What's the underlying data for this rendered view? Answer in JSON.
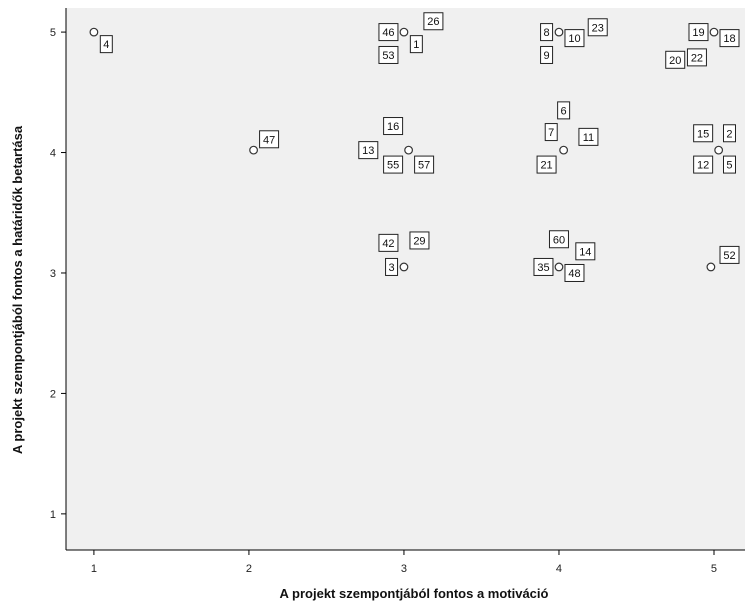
{
  "chart_data": {
    "type": "scatter",
    "title": "",
    "xlabel": "A projekt szempontjából fontos a motiváció",
    "ylabel": "A projekt szempontjából fontos a határidők betartása",
    "xlim": [
      0.82,
      5.2
    ],
    "ylim": [
      0.7,
      5.2
    ],
    "xticks": [
      1,
      2,
      3,
      4,
      5
    ],
    "yticks": [
      1,
      2,
      3,
      4,
      5
    ],
    "grid": false,
    "colors": {
      "plot_bg": "#f0f0f0",
      "marker_stroke": "#333333",
      "axis": "#000000"
    },
    "points": [
      {
        "x": 1.0,
        "y": 5.0
      },
      {
        "x": 3.0,
        "y": 5.0
      },
      {
        "x": 4.0,
        "y": 5.0
      },
      {
        "x": 5.0,
        "y": 5.0
      },
      {
        "x": 2.03,
        "y": 4.02
      },
      {
        "x": 3.03,
        "y": 4.02
      },
      {
        "x": 4.03,
        "y": 4.02
      },
      {
        "x": 5.03,
        "y": 4.02
      },
      {
        "x": 3.0,
        "y": 3.05
      },
      {
        "x": 4.0,
        "y": 3.05
      },
      {
        "x": 4.98,
        "y": 3.05
      }
    ],
    "point_labels": [
      {
        "text": "4",
        "x": 1.08,
        "y": 4.9
      },
      {
        "text": "46",
        "x": 2.9,
        "y": 5.0
      },
      {
        "text": "26",
        "x": 3.19,
        "y": 5.09
      },
      {
        "text": "1",
        "x": 3.08,
        "y": 4.9
      },
      {
        "text": "53",
        "x": 2.9,
        "y": 4.81
      },
      {
        "text": "8",
        "x": 3.92,
        "y": 5.0
      },
      {
        "text": "10",
        "x": 4.1,
        "y": 4.95
      },
      {
        "text": "23",
        "x": 4.25,
        "y": 5.04
      },
      {
        "text": "9",
        "x": 3.92,
        "y": 4.81
      },
      {
        "text": "19",
        "x": 4.9,
        "y": 5.0
      },
      {
        "text": "18",
        "x": 5.1,
        "y": 4.95
      },
      {
        "text": "20",
        "x": 4.75,
        "y": 4.77
      },
      {
        "text": "22",
        "x": 4.89,
        "y": 4.79
      },
      {
        "text": "47",
        "x": 2.13,
        "y": 4.11
      },
      {
        "text": "16",
        "x": 2.93,
        "y": 4.22
      },
      {
        "text": "13",
        "x": 2.77,
        "y": 4.02
      },
      {
        "text": "55",
        "x": 2.93,
        "y": 3.9
      },
      {
        "text": "57",
        "x": 3.13,
        "y": 3.9
      },
      {
        "text": "6",
        "x": 4.03,
        "y": 4.35
      },
      {
        "text": "7",
        "x": 3.95,
        "y": 4.17
      },
      {
        "text": "11",
        "x": 4.19,
        "y": 4.13
      },
      {
        "text": "21",
        "x": 3.92,
        "y": 3.9
      },
      {
        "text": "15",
        "x": 4.93,
        "y": 4.16
      },
      {
        "text": "2",
        "x": 5.1,
        "y": 4.16
      },
      {
        "text": "12",
        "x": 4.93,
        "y": 3.9
      },
      {
        "text": "5",
        "x": 5.1,
        "y": 3.9
      },
      {
        "text": "42",
        "x": 2.9,
        "y": 3.25
      },
      {
        "text": "29",
        "x": 3.1,
        "y": 3.27
      },
      {
        "text": "3",
        "x": 2.92,
        "y": 3.05
      },
      {
        "text": "60",
        "x": 4.0,
        "y": 3.28
      },
      {
        "text": "14",
        "x": 4.17,
        "y": 3.18
      },
      {
        "text": "35",
        "x": 3.9,
        "y": 3.05
      },
      {
        "text": "48",
        "x": 4.1,
        "y": 3.0
      },
      {
        "text": "52",
        "x": 5.1,
        "y": 3.15
      }
    ]
  }
}
